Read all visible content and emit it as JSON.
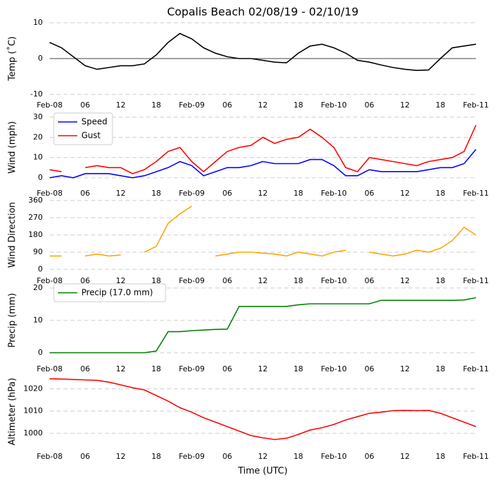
{
  "title": "Copalis Beach 02/08/19 - 02/10/19",
  "xlabel": "Time (UTC)",
  "chart_data": [
    {
      "type": "line",
      "ylabel": "Temp (˚C)",
      "ylim": [
        -10,
        10
      ],
      "yticks": [
        -10,
        0,
        10
      ],
      "grid": true,
      "zero_line": true,
      "xlim": [
        0,
        72
      ],
      "xticks": [
        {
          "value": 0,
          "label": "Feb-08"
        },
        {
          "value": 6,
          "label": "06"
        },
        {
          "value": 12,
          "label": "12"
        },
        {
          "value": 18,
          "label": "18"
        },
        {
          "value": 24,
          "label": "Feb-09"
        },
        {
          "value": 30,
          "label": "06"
        },
        {
          "value": 36,
          "label": "12"
        },
        {
          "value": 42,
          "label": "18"
        },
        {
          "value": 48,
          "label": "Feb-10"
        },
        {
          "value": 54,
          "label": "06"
        },
        {
          "value": 60,
          "label": "12"
        },
        {
          "value": 66,
          "label": "18"
        },
        {
          "value": 72,
          "label": "Feb-11"
        }
      ],
      "x": [
        0,
        2,
        4,
        6,
        8,
        10,
        12,
        14,
        16,
        18,
        20,
        22,
        24,
        26,
        28,
        30,
        32,
        34,
        36,
        38,
        40,
        42,
        44,
        46,
        48,
        50,
        52,
        54,
        56,
        58,
        60,
        62,
        64,
        66,
        68,
        70,
        72
      ],
      "series": [
        {
          "name": "Temp",
          "color": "#000000",
          "values": [
            4.5,
            3,
            0.5,
            -2,
            -3,
            -2.5,
            -2,
            -2,
            -1.5,
            1,
            4.5,
            7,
            5.5,
            3,
            1.5,
            0.5,
            0,
            0,
            -0.5,
            -1,
            -1.2,
            1.5,
            3.5,
            4,
            3,
            1.5,
            -0.5,
            -1,
            -1.8,
            -2.5,
            -3,
            -3.3,
            -3.2,
            0,
            3,
            3.5,
            4
          ]
        }
      ]
    },
    {
      "type": "line",
      "ylabel": "Wind (mph)",
      "ylim": [
        0,
        30
      ],
      "yticks": [
        0,
        10,
        20,
        30
      ],
      "grid": true,
      "legend": "upper left",
      "xlim": [
        0,
        72
      ],
      "xticks": [
        {
          "value": 0,
          "label": "Feb-08"
        },
        {
          "value": 6,
          "label": "06"
        },
        {
          "value": 12,
          "label": "12"
        },
        {
          "value": 18,
          "label": "18"
        },
        {
          "value": 24,
          "label": "Feb-09"
        },
        {
          "value": 30,
          "label": "06"
        },
        {
          "value": 36,
          "label": "12"
        },
        {
          "value": 42,
          "label": "18"
        },
        {
          "value": 48,
          "label": "Feb-10"
        },
        {
          "value": 54,
          "label": "06"
        },
        {
          "value": 60,
          "label": "12"
        },
        {
          "value": 66,
          "label": "18"
        },
        {
          "value": 72,
          "label": "Feb-11"
        }
      ],
      "x": [
        0,
        2,
        4,
        6,
        8,
        10,
        12,
        14,
        16,
        18,
        20,
        22,
        24,
        26,
        28,
        30,
        32,
        34,
        36,
        38,
        40,
        42,
        44,
        46,
        48,
        50,
        52,
        54,
        56,
        58,
        60,
        62,
        64,
        66,
        68,
        70,
        72
      ],
      "series": [
        {
          "name": "Speed",
          "color": "#0000ff",
          "values": [
            0,
            1,
            0,
            2,
            2,
            2,
            1,
            0,
            1,
            3,
            5,
            8,
            6,
            1,
            3,
            5,
            5,
            6,
            8,
            7,
            7,
            7,
            9,
            9,
            6,
            1,
            1,
            4,
            3,
            3,
            3,
            3,
            4,
            5,
            5,
            7,
            14
          ]
        },
        {
          "name": "Gust",
          "color": "#ff0000",
          "values": [
            4,
            3,
            null,
            5,
            6,
            5,
            5,
            2,
            4,
            8,
            13,
            15,
            8,
            3,
            8,
            13,
            15,
            16,
            20,
            17,
            19,
            20,
            24,
            20,
            15,
            5,
            3,
            10,
            9,
            8,
            7,
            6,
            8,
            9,
            10,
            13,
            26
          ]
        }
      ]
    },
    {
      "type": "line",
      "ylabel": "Wind Direction",
      "ylim": [
        0,
        360
      ],
      "yticks": [
        0,
        90,
        180,
        270,
        360
      ],
      "grid": true,
      "xlim": [
        0,
        72
      ],
      "xticks": [
        {
          "value": 0,
          "label": "Feb-08"
        },
        {
          "value": 6,
          "label": "06"
        },
        {
          "value": 12,
          "label": "12"
        },
        {
          "value": 18,
          "label": "18"
        },
        {
          "value": 24,
          "label": "Feb-09"
        },
        {
          "value": 30,
          "label": "06"
        },
        {
          "value": 36,
          "label": "12"
        },
        {
          "value": 42,
          "label": "18"
        },
        {
          "value": 48,
          "label": "Feb-10"
        },
        {
          "value": 54,
          "label": "06"
        },
        {
          "value": 60,
          "label": "12"
        },
        {
          "value": 66,
          "label": "18"
        },
        {
          "value": 72,
          "label": "Feb-11"
        }
      ],
      "x": [
        0,
        2,
        4,
        6,
        8,
        10,
        12,
        14,
        16,
        18,
        20,
        22,
        24,
        26,
        28,
        30,
        32,
        34,
        36,
        38,
        40,
        42,
        44,
        46,
        48,
        50,
        52,
        54,
        56,
        58,
        60,
        62,
        64,
        66,
        68,
        70,
        72
      ],
      "series": [
        {
          "name": "Direction",
          "color": "#ffa500",
          "values": [
            70,
            70,
            null,
            70,
            80,
            70,
            75,
            null,
            90,
            120,
            240,
            290,
            330,
            null,
            70,
            80,
            90,
            90,
            85,
            80,
            70,
            90,
            80,
            70,
            90,
            100,
            null,
            90,
            80,
            70,
            80,
            100,
            90,
            110,
            150,
            220,
            180
          ]
        }
      ]
    },
    {
      "type": "line",
      "ylabel": "Precip (mm)",
      "ylim": [
        0,
        20
      ],
      "yticks": [
        0,
        10,
        20
      ],
      "grid": true,
      "legend": "upper left",
      "xlim": [
        0,
        72
      ],
      "xticks": [
        {
          "value": 0,
          "label": "Feb-08"
        },
        {
          "value": 6,
          "label": "06"
        },
        {
          "value": 12,
          "label": "12"
        },
        {
          "value": 18,
          "label": "18"
        },
        {
          "value": 24,
          "label": "Feb-09"
        },
        {
          "value": 30,
          "label": "06"
        },
        {
          "value": 36,
          "label": "12"
        },
        {
          "value": 42,
          "label": "18"
        },
        {
          "value": 48,
          "label": "Feb-10"
        },
        {
          "value": 54,
          "label": "06"
        },
        {
          "value": 60,
          "label": "12"
        },
        {
          "value": 66,
          "label": "18"
        },
        {
          "value": 72,
          "label": "Feb-11"
        }
      ],
      "x": [
        0,
        2,
        4,
        6,
        8,
        10,
        12,
        14,
        16,
        18,
        20,
        22,
        24,
        26,
        28,
        30,
        32,
        34,
        36,
        38,
        40,
        42,
        44,
        46,
        48,
        50,
        52,
        54,
        56,
        58,
        60,
        62,
        64,
        66,
        68,
        70,
        72
      ],
      "series": [
        {
          "name": "Precip (17.0 mm)",
          "color": "#008000",
          "values": [
            0,
            0,
            0,
            0,
            0,
            0,
            0,
            0,
            0,
            0.5,
            6.5,
            6.5,
            6.8,
            7,
            7.2,
            7.3,
            14.3,
            14.3,
            14.3,
            14.3,
            14.3,
            14.8,
            15.1,
            15.1,
            15.1,
            15.1,
            15.1,
            15.1,
            16.2,
            16.2,
            16.2,
            16.2,
            16.2,
            16.2,
            16.2,
            16.3,
            17
          ]
        }
      ]
    },
    {
      "type": "line",
      "ylabel": "Altimeter (hPa)",
      "ylim": [
        993.5,
        1026
      ],
      "yticks": [
        1000,
        1010,
        1020
      ],
      "grid": true,
      "xlim": [
        0,
        72
      ],
      "xticks": [
        {
          "value": 0,
          "label": "Feb-08"
        },
        {
          "value": 6,
          "label": "06"
        },
        {
          "value": 12,
          "label": "12"
        },
        {
          "value": 18,
          "label": "18"
        },
        {
          "value": 24,
          "label": "Feb-09"
        },
        {
          "value": 30,
          "label": "06"
        },
        {
          "value": 36,
          "label": "12"
        },
        {
          "value": 42,
          "label": "18"
        },
        {
          "value": 48,
          "label": "Feb-10"
        },
        {
          "value": 54,
          "label": "06"
        },
        {
          "value": 60,
          "label": "12"
        },
        {
          "value": 66,
          "label": "18"
        },
        {
          "value": 72,
          "label": "Feb-11"
        }
      ],
      "x": [
        0,
        2,
        4,
        6,
        8,
        10,
        12,
        14,
        16,
        18,
        20,
        22,
        24,
        26,
        28,
        30,
        32,
        34,
        36,
        38,
        40,
        42,
        44,
        46,
        48,
        50,
        52,
        54,
        56,
        58,
        60,
        62,
        64,
        66,
        68,
        70,
        72
      ],
      "series": [
        {
          "name": "Altimeter",
          "color": "#ff0000",
          "values": [
            1024.5,
            1024.4,
            1024.2,
            1024,
            1023.8,
            1023,
            1021.8,
            1020.5,
            1019.5,
            1017,
            1014.5,
            1011.5,
            1009.5,
            1007,
            1005,
            1003,
            1001,
            999,
            998,
            997.2,
            997.8,
            999.5,
            1001.5,
            1002.5,
            1004,
            1006,
            1007.5,
            1009,
            1009.5,
            1010.2,
            1010.3,
            1010.2,
            1010.3,
            1009,
            1007,
            1005,
            1003
          ]
        }
      ]
    }
  ]
}
